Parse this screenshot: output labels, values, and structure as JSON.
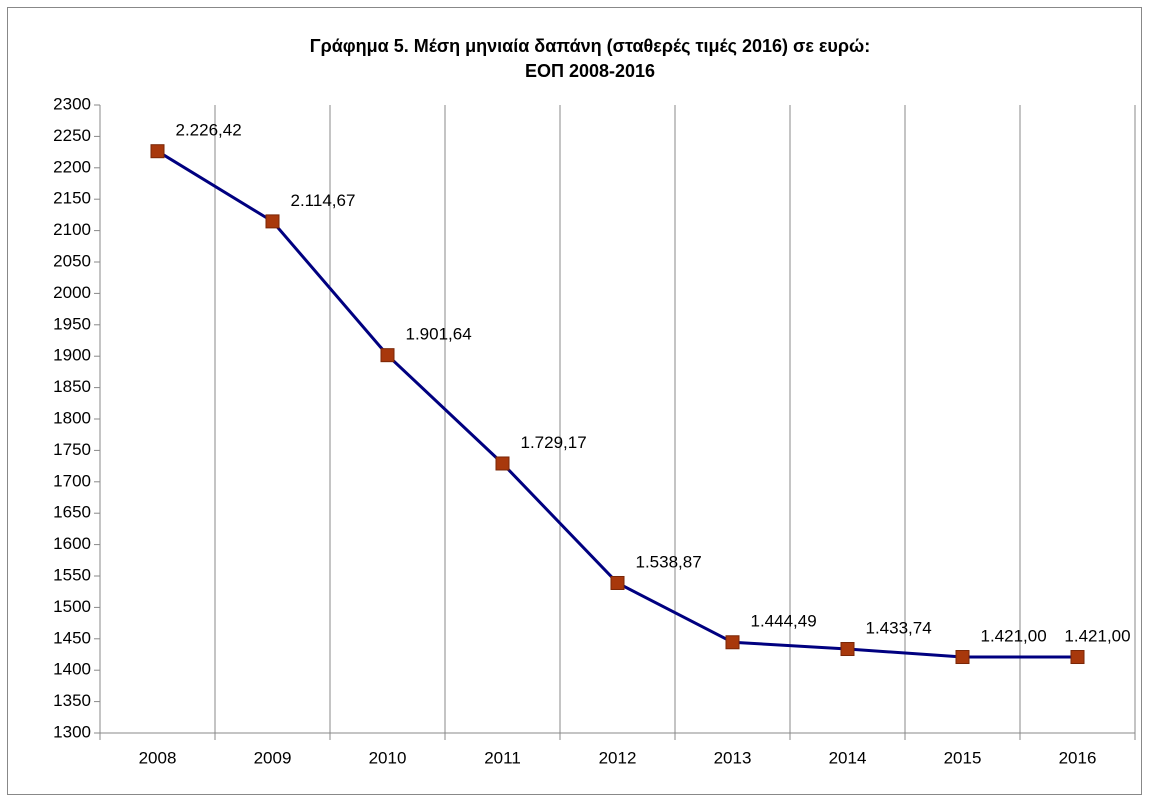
{
  "chart_data": {
    "type": "line",
    "title": [
      "Γράφημα 5. Μέση μηνιαία δαπάνη (σταθερές τιμές 2016) σε ευρώ:",
      "ΕΟΠ  2008-2016"
    ],
    "categories": [
      "2008",
      "2009",
      "2010",
      "2011",
      "2012",
      "2013",
      "2014",
      "2015",
      "2016"
    ],
    "values": [
      2226.42,
      2114.67,
      1901.64,
      1729.17,
      1538.87,
      1444.49,
      1433.74,
      1421.0,
      1421.0
    ],
    "value_labels": [
      "2.226,42",
      "2.114,67",
      "1.901,64",
      "1.729,17",
      "1.538,87",
      "1.444,49",
      "1.433,74",
      "1.421,00",
      "1.421,00"
    ],
    "color": "#000080",
    "marker_color": "#a8380c",
    "ylim": [
      1300,
      2300
    ],
    "yticks": [
      1300,
      1350,
      1400,
      1450,
      1500,
      1550,
      1600,
      1650,
      1700,
      1750,
      1800,
      1850,
      1900,
      1950,
      2000,
      2050,
      2100,
      2150,
      2200,
      2250,
      2300
    ],
    "grid": "x"
  }
}
